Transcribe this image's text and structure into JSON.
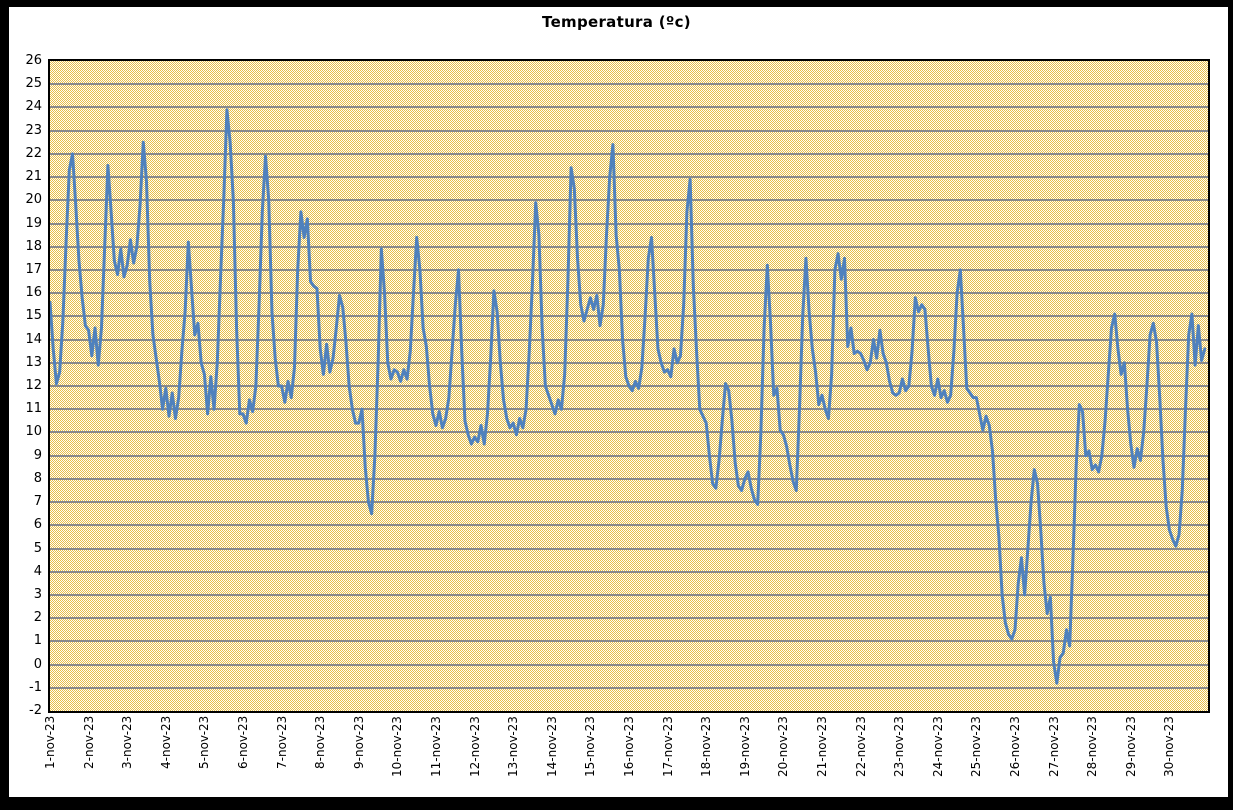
{
  "title": "Temperatura (ºc)",
  "colors": {
    "series_line": "#4f81bd",
    "gridline": "#8a8a8a",
    "plot_border": "#000000",
    "pattern_gold": "#e8be4a",
    "pattern_light": "#fffef6",
    "frame": "#000000",
    "background": "#ffffff"
  },
  "chart_data": {
    "type": "line",
    "title": "Temperatura (ºc)",
    "xlabel": "",
    "ylabel": "",
    "ylim": [
      -2,
      26
    ],
    "y_tick_step": 1,
    "y_tick_labels": [
      "26",
      "25",
      "24",
      "23",
      "22",
      "21",
      "20",
      "19",
      "18",
      "17",
      "16",
      "15",
      "14",
      "13",
      "12",
      "11",
      "10",
      "9",
      "8",
      "7",
      "6",
      "5",
      "4",
      "3",
      "2",
      "1",
      "0",
      "-1",
      "-2"
    ],
    "grid": "horizontal",
    "legend": "none",
    "plot_background": "yellow-white checkerboard pattern fill",
    "x_categories": [
      "1-nov-23",
      "2-nov-23",
      "3-nov-23",
      "4-nov-23",
      "5-nov-23",
      "6-nov-23",
      "7-nov-23",
      "8-nov-23",
      "9-nov-23",
      "10-nov-23",
      "11-nov-23",
      "12-nov-23",
      "13-nov-23",
      "14-nov-23",
      "15-nov-23",
      "16-nov-23",
      "17-nov-23",
      "18-nov-23",
      "19-nov-23",
      "20-nov-23",
      "21-nov-23",
      "22-nov-23",
      "23-nov-23",
      "24-nov-23",
      "25-nov-23",
      "26-nov-23",
      "27-nov-23",
      "28-nov-23",
      "29-nov-23",
      "30-nov-23"
    ],
    "samples_per_day": 12,
    "series": [
      {
        "name": "Temperatura",
        "color": "#4f81bd",
        "values": [
          15.6,
          13.6,
          12.1,
          12.6,
          14.8,
          18.2,
          21.3,
          22.0,
          19.8,
          17.4,
          15.8,
          14.6,
          14.4,
          13.3,
          14.5,
          12.9,
          14.5,
          18.0,
          21.5,
          19.5,
          17.4,
          16.8,
          17.9,
          16.7,
          17.2,
          18.3,
          17.3,
          18.0,
          19.8,
          22.5,
          20.8,
          16.5,
          14.2,
          13.2,
          12.2,
          11.0,
          11.9,
          10.7,
          11.7,
          10.6,
          11.5,
          13.5,
          15.2,
          18.2,
          16.2,
          14.2,
          14.7,
          13.0,
          12.5,
          10.8,
          12.4,
          11.0,
          13.0,
          16.6,
          20.0,
          23.9,
          22.5,
          20.0,
          14.5,
          10.8,
          10.8,
          10.4,
          11.4,
          10.9,
          12.0,
          15.5,
          19.5,
          21.9,
          20.0,
          15.2,
          13.2,
          12.0,
          12.0,
          11.3,
          12.2,
          11.5,
          12.8,
          17.0,
          19.5,
          18.4,
          19.2,
          16.5,
          16.3,
          16.2,
          13.6,
          12.5,
          13.8,
          12.6,
          13.2,
          14.5,
          15.9,
          15.4,
          13.9,
          12.0,
          11.0,
          10.4,
          10.4,
          11.0,
          8.5,
          7.0,
          6.5,
          9.0,
          13.0,
          17.9,
          16.0,
          13.0,
          12.3,
          12.7,
          12.6,
          12.2,
          12.7,
          12.3,
          13.5,
          16.0,
          18.4,
          17.0,
          14.5,
          13.7,
          12.0,
          10.8,
          10.3,
          10.9,
          10.2,
          10.6,
          11.5,
          13.5,
          15.5,
          17.0,
          13.5,
          10.5,
          9.9,
          9.5,
          9.8,
          9.6,
          10.3,
          9.5,
          10.8,
          13.2,
          16.1,
          15.2,
          13.0,
          11.4,
          10.6,
          10.2,
          10.4,
          9.9,
          10.6,
          10.2,
          11.0,
          13.5,
          16.5,
          19.9,
          18.5,
          14.5,
          12.0,
          11.6,
          11.2,
          10.8,
          11.4,
          11.0,
          12.5,
          16.5,
          21.4,
          20.5,
          17.5,
          15.5,
          14.8,
          15.3,
          15.8,
          15.3,
          15.9,
          14.6,
          15.5,
          18.5,
          21.0,
          22.4,
          18.5,
          17.0,
          14.0,
          12.4,
          12.0,
          11.8,
          12.2,
          11.9,
          12.8,
          15.0,
          17.5,
          18.4,
          16.0,
          13.6,
          13.0,
          12.6,
          12.7,
          12.4,
          13.6,
          13.0,
          13.3,
          15.5,
          19.5,
          20.9,
          16.3,
          13.5,
          11.0,
          10.7,
          10.4,
          9.0,
          7.8,
          7.6,
          8.8,
          10.5,
          12.1,
          11.8,
          10.5,
          8.7,
          7.7,
          7.5,
          8.0,
          8.3,
          7.6,
          7.1,
          6.9,
          10.0,
          14.5,
          17.2,
          14.7,
          11.6,
          11.9,
          10.1,
          9.9,
          9.4,
          8.6,
          7.9,
          7.5,
          11.0,
          15.0,
          17.5,
          15.2,
          13.6,
          12.6,
          11.2,
          11.6,
          11.0,
          10.6,
          12.5,
          17.0,
          17.7,
          16.6,
          17.5,
          13.7,
          14.5,
          13.4,
          13.5,
          13.4,
          13.1,
          12.7,
          13.0,
          14.0,
          13.2,
          14.4,
          13.4,
          13.0,
          12.2,
          11.7,
          11.6,
          11.7,
          12.3,
          11.8,
          12.0,
          13.5,
          15.8,
          15.2,
          15.5,
          15.3,
          13.6,
          12.0,
          11.6,
          12.3,
          11.5,
          11.8,
          11.3,
          11.6,
          13.5,
          16.0,
          17.0,
          14.5,
          11.9,
          11.7,
          11.5,
          11.5,
          10.8,
          10.1,
          10.7,
          10.3,
          9.2,
          7.1,
          5.5,
          3.0,
          1.8,
          1.3,
          1.1,
          1.5,
          3.5,
          4.6,
          3.0,
          5.0,
          7.0,
          8.4,
          7.8,
          5.8,
          3.5,
          2.2,
          2.9,
          0.1,
          -0.8,
          0.3,
          0.5,
          1.5,
          0.8,
          4.5,
          8.5,
          11.2,
          10.9,
          9.0,
          9.2,
          8.4,
          8.6,
          8.3,
          9.0,
          10.5,
          12.5,
          14.5,
          15.1,
          13.6,
          12.5,
          13.0,
          11.0,
          9.5,
          8.5,
          9.3,
          8.8,
          10.0,
          12.0,
          14.2,
          14.7,
          13.9,
          11.5,
          8.8,
          6.8,
          5.8,
          5.4,
          5.1,
          5.6,
          7.5,
          11.0,
          14.2,
          15.1,
          12.9,
          14.6,
          13.1,
          13.6
        ]
      }
    ]
  }
}
